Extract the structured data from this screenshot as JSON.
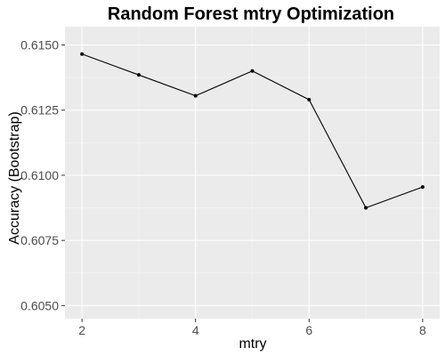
{
  "chart_data": {
    "type": "line",
    "title": "Random Forest mtry Optimization",
    "xlabel": "mtry",
    "ylabel": "Accuracy (Bootstrap)",
    "x": [
      2,
      3,
      4,
      5,
      6,
      7,
      8
    ],
    "y": [
      0.61465,
      0.61385,
      0.61305,
      0.614,
      0.6129,
      0.60875,
      0.60955
    ],
    "xlim": [
      1.7,
      8.3
    ],
    "ylim": [
      0.6045,
      0.6157
    ],
    "x_ticks": [
      2,
      4,
      6,
      8
    ],
    "x_tick_labels": [
      "2",
      "4",
      "6",
      "8"
    ],
    "y_ticks": [
      0.605,
      0.6075,
      0.61,
      0.6125,
      0.615
    ],
    "y_tick_labels": [
      "0.6050",
      "0.6075",
      "0.6100",
      "0.6125",
      "0.6150"
    ],
    "grid": true,
    "colors": {
      "panel_background": "#ebebeb",
      "grid_major": "#ffffff",
      "grid_minor": "#f5f5f5",
      "line": "#000000",
      "point": "#000000",
      "tick": "#333333"
    }
  }
}
